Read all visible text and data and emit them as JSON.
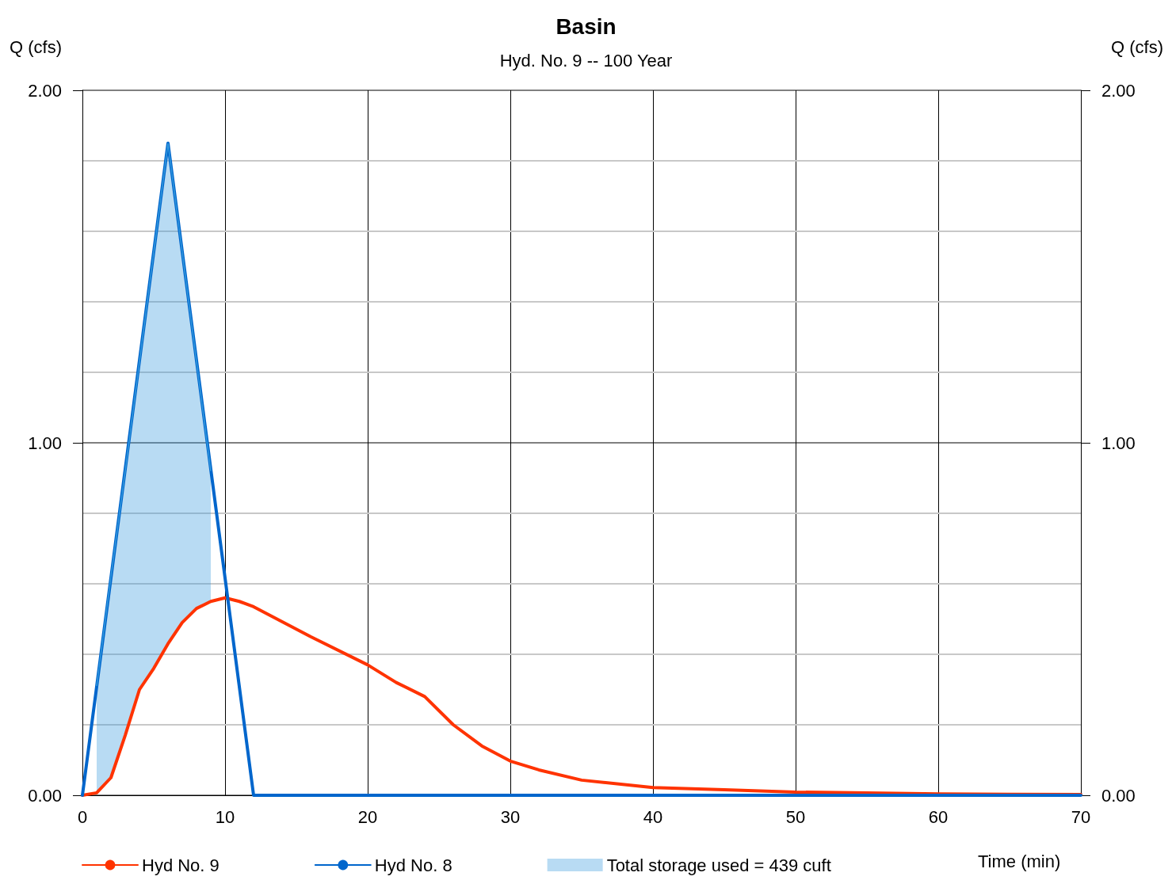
{
  "chart_data": {
    "type": "line",
    "title": "Basin",
    "subtitle": "Hyd. No. 9 -- 100 Year",
    "xlabel": "Time (min)",
    "ylabel": "Q (cfs)",
    "y2label": "Q (cfs)",
    "xlim": [
      0,
      70
    ],
    "xticks": [
      0,
      10,
      20,
      30,
      40,
      50,
      60,
      70
    ],
    "ylim": [
      0,
      2
    ],
    "yticks": [
      {
        "value": 0,
        "label": "0.00"
      },
      {
        "value": 0.2,
        "label": null
      },
      {
        "value": 0.4,
        "label": null
      },
      {
        "value": 0.6,
        "label": null
      },
      {
        "value": 0.8,
        "label": null
      },
      {
        "value": 1,
        "label": "1.00"
      },
      {
        "value": 1.2,
        "label": null
      },
      {
        "value": 1.4,
        "label": null
      },
      {
        "value": 1.6,
        "label": null
      },
      {
        "value": 1.8,
        "label": null
      },
      {
        "value": 2,
        "label": "2.00"
      }
    ],
    "y2lim": [
      0,
      2
    ],
    "y2ticks": [
      {
        "value": 0,
        "label": "0.00"
      },
      {
        "value": 1,
        "label": "1.00"
      },
      {
        "value": 2,
        "label": "2.00"
      }
    ],
    "grid": true,
    "legend": "bottom",
    "marker": "none",
    "line_style": "solid",
    "series": [
      {
        "name": "Hyd No. 9",
        "color": "#ff3300",
        "x": [
          0,
          1,
          2,
          3,
          4,
          5,
          6,
          7,
          8,
          9,
          10,
          11,
          12,
          16,
          20,
          22,
          24,
          26,
          28,
          30,
          32,
          35,
          40,
          45,
          50,
          55,
          60,
          70
        ],
        "values": [
          0,
          0.007,
          0.05,
          0.17,
          0.3,
          0.36,
          0.43,
          0.49,
          0.53,
          0.55,
          0.56,
          0.55,
          0.535,
          0.45,
          0.37,
          0.32,
          0.28,
          0.2,
          0.14,
          0.097,
          0.072,
          0.043,
          0.022,
          0.016,
          0.009,
          0.007,
          0.004,
          0.002
        ]
      },
      {
        "name": "Hyd No. 8",
        "color": "#0066cc",
        "x": [
          0,
          6,
          12,
          70
        ],
        "values": [
          0,
          1.85,
          0,
          0
        ]
      },
      {
        "name": "Total storage used = 439 cuft",
        "type": "line",
        "color": "#3399dd",
        "x": [
          1,
          2,
          3,
          4,
          5,
          6,
          7,
          8,
          9
        ],
        "values": [
          0.31,
          0.62,
          0.92,
          1.23,
          1.54,
          1.85,
          1.54,
          1.23,
          0.92
        ],
        "upper": [
          0.31,
          0.62,
          0.92,
          1.23,
          1.54,
          1.85,
          1.54,
          1.23,
          0.92
        ],
        "lower": [
          0.007,
          0.05,
          0.17,
          0.3,
          0.36,
          0.43,
          0.49,
          0.53,
          0.55
        ]
      }
    ]
  }
}
